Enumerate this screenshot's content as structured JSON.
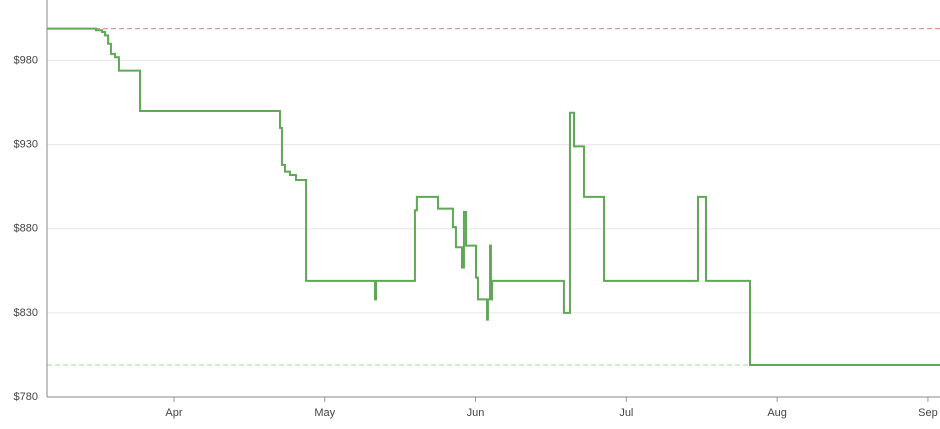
{
  "chart_data": {
    "type": "step",
    "x": [
      3.158,
      3.483,
      3.523,
      3.543,
      3.563,
      3.582,
      3.609,
      3.635,
      3.775,
      4.703,
      4.716,
      4.736,
      4.769,
      4.809,
      4.876,
      5.333,
      5.34,
      5.598,
      5.611,
      5.751,
      5.85,
      5.87,
      5.91,
      5.923,
      5.937,
      6.003,
      6.016,
      6.076,
      6.082,
      6.096,
      6.102,
      6.109,
      6.586,
      6.626,
      6.653,
      6.719,
      6.852,
      7.475,
      7.528,
      7.82,
      9.08
    ],
    "series": [
      {
        "color": "#5fa855",
        "values": [
          999,
          998,
          997,
          995,
          990,
          984,
          982,
          974,
          950,
          940,
          918,
          914,
          912,
          909,
          849,
          838,
          849,
          891,
          899,
          892,
          881,
          869,
          857,
          890,
          870,
          851,
          838,
          826,
          838,
          870,
          838,
          849,
          830,
          949,
          929,
          899,
          849,
          899,
          849,
          799,
          799
        ]
      }
    ],
    "xlim": [
      3.158,
      9.08
    ],
    "xticks": [
      {
        "value": 4,
        "label": "Apr"
      },
      {
        "value": 5,
        "label": "May"
      },
      {
        "value": 6,
        "label": "Jun"
      },
      {
        "value": 7,
        "label": "Jul"
      },
      {
        "value": 8,
        "label": "Aug"
      },
      {
        "value": 9,
        "label": "Sep"
      }
    ],
    "ylim": [
      780,
      1016
    ],
    "yticks": [
      {
        "value": 780,
        "label": "$780"
      },
      {
        "value": 830,
        "label": "$830"
      },
      {
        "value": 880,
        "label": "$880"
      },
      {
        "value": 930,
        "label": "$930"
      },
      {
        "value": 980,
        "label": "$980"
      }
    ],
    "reference_lines": [
      {
        "value": 999,
        "color": "#d99a9a"
      },
      {
        "value": 799,
        "color": "#b5d9ad"
      }
    ],
    "grid": true
  }
}
